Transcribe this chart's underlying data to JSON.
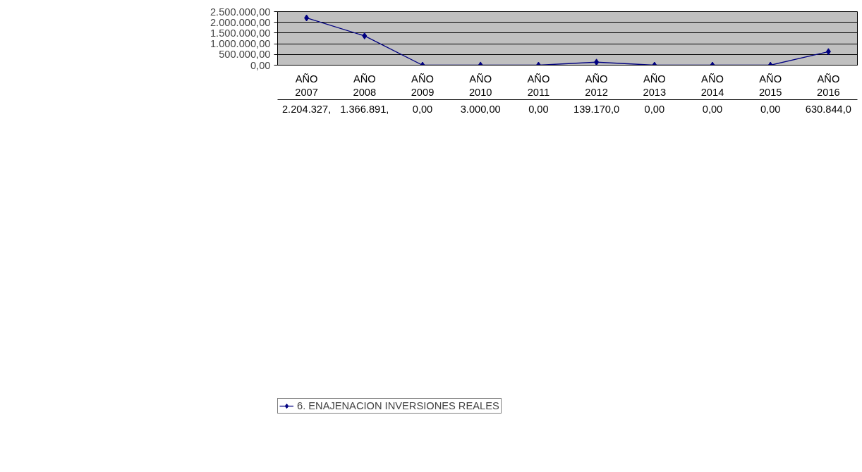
{
  "chart_data": {
    "type": "line",
    "categories": [
      "AÑO 2007",
      "AÑO 2008",
      "AÑO 2009",
      "AÑO 2010",
      "AÑO 2011",
      "AÑO 2012",
      "AÑO 2013",
      "AÑO 2014",
      "AÑO 2015",
      "AÑO 2016"
    ],
    "series": [
      {
        "name": "6. ENAJENACION INVERSIONES REALES",
        "color": "#000080",
        "values": [
          2204327,
          1366891,
          0,
          3000,
          0,
          139170,
          0,
          0,
          0,
          630844
        ],
        "value_labels": [
          "2.204.327,",
          "1.366.891,",
          "0,00",
          "3.000,00",
          "0,00",
          "139.170,0",
          "0,00",
          "0,00",
          "0,00",
          "630.844,0"
        ]
      }
    ],
    "ylim": [
      0,
      2500000
    ],
    "yticks": [
      {
        "value": 0,
        "label": "0,00"
      },
      {
        "value": 500000,
        "label": "500.000,00"
      },
      {
        "value": 1000000,
        "label": "1.000.000,00"
      },
      {
        "value": 1500000,
        "label": "1.500.000,00"
      },
      {
        "value": 2000000,
        "label": "2.000.000,00"
      },
      {
        "value": 2500000,
        "label": "2.500.000,00"
      }
    ],
    "grid": "y",
    "legend": "bottom",
    "marker": "diamond",
    "line_style": "solid"
  }
}
